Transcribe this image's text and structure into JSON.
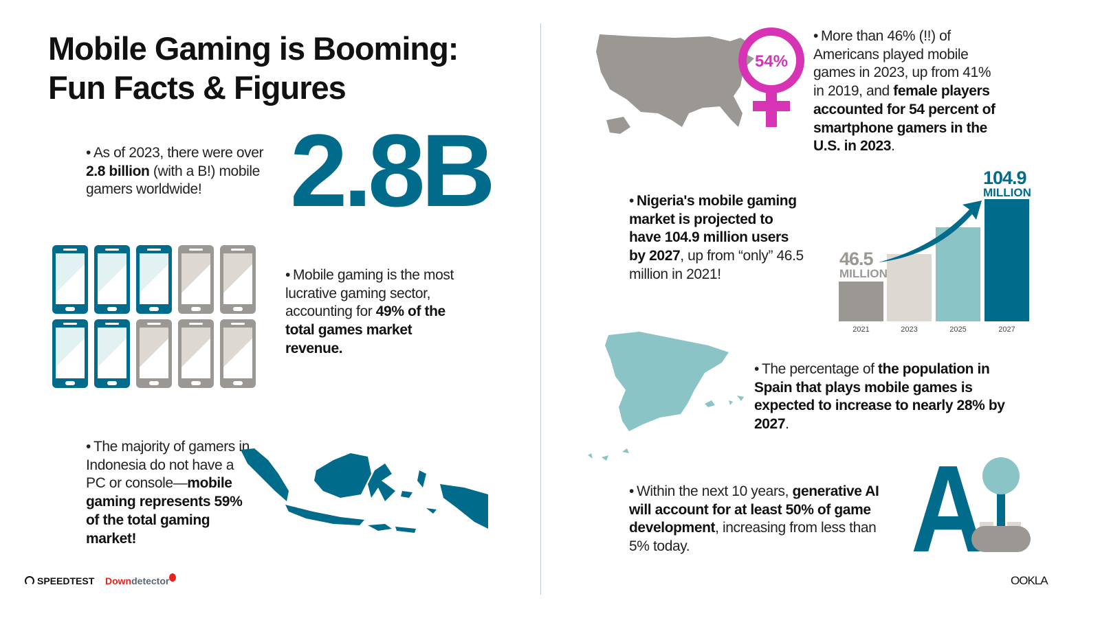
{
  "title": [
    "Mobile Gaming is Booming:",
    "Fun Facts & Figures"
  ],
  "colors": {
    "teal": "#006b8a",
    "light_teal": "#8bc4c6",
    "gray": "#9b9893",
    "light_gray": "#ddd8d1",
    "magenta": "#d633b5",
    "downdetector_red": "#e8221b"
  },
  "facts": {
    "gamers": [
      {
        "t": "As of 2023, there were over "
      },
      {
        "t": "2.8 billion",
        "b": true
      },
      {
        "t": " (with a B!) mobile gamers worldwide!"
      }
    ],
    "revenue": [
      {
        "t": "Mobile gaming is the most lucrative gaming sector, accounting for "
      },
      {
        "t": "49% of the total games market revenue.",
        "b": true
      }
    ],
    "indonesia": [
      {
        "t": "The majority of gamers in Indonesia do not have a PC or console—"
      },
      {
        "t": "mobile gaming represents 59% of the total gaming market!",
        "b": true
      }
    ],
    "us": [
      {
        "t": "More than 46% (!!) of Americans played mobile games in 2023, up from 41% in 2019, and "
      },
      {
        "t": "female players accounted for 54 percent of smartphone gamers in the U.S. in 2023",
        "b": true
      },
      {
        "t": "."
      }
    ],
    "nigeria": [
      {
        "t": "Nigeria's mobile gaming market is projected to have 104.9 million users by 2027",
        "b": true
      },
      {
        "t": ", up from “only” 46.5 million in 2021!"
      }
    ],
    "spain": [
      {
        "t": "The percentage of "
      },
      {
        "t": "the population in Spain that plays mobile games is expected to increase to nearly 28% by 2027",
        "b": true
      },
      {
        "t": "."
      }
    ],
    "ai": [
      {
        "t": "Within the next 10 years, "
      },
      {
        "t": "generative AI will account for at least 50% of game development",
        "b": true
      },
      {
        "t": ", increasing from less than 5% today."
      }
    ]
  },
  "bullet": "•",
  "big_number": "2.8B",
  "phones": {
    "share_percent": 49,
    "filled": 5,
    "total": 10
  },
  "female_badge": "54%",
  "ai_letter": "A",
  "chart_data": {
    "type": "bar",
    "categories": [
      "2021",
      "2023",
      "2025",
      "2027"
    ],
    "values": [
      46.5,
      66,
      85,
      104.9
    ],
    "data_labels": [
      {
        "category": "2021",
        "value": "46.5",
        "unit": "MILLION"
      },
      {
        "category": "2027",
        "value": "104.9",
        "unit": "MILLION"
      }
    ],
    "colors": [
      "#9b9893",
      "#ddd8d1",
      "#8bc4c6",
      "#006b8a"
    ],
    "grid": false,
    "legend": "none",
    "ylim": [
      0,
      105
    ]
  },
  "logos": {
    "speedtest": "SPEEDTEST",
    "downdetector_a": "Down",
    "downdetector_b": "detector",
    "ookla": "OOKLA"
  }
}
